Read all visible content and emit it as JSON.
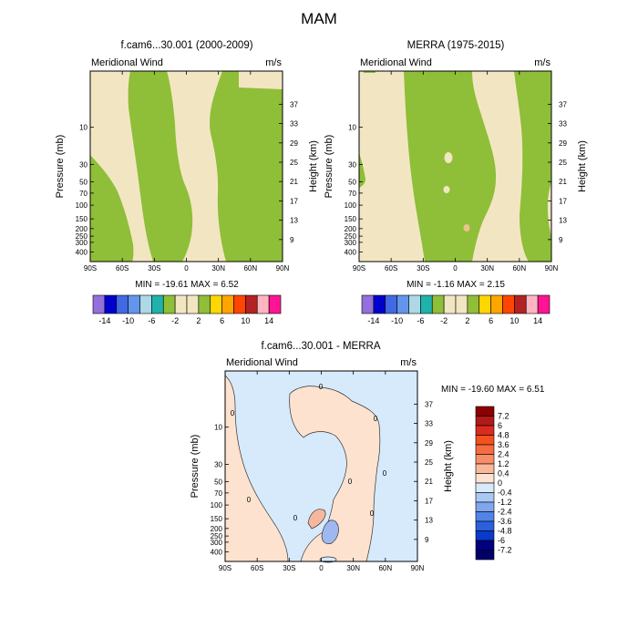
{
  "figure_title": "MAM",
  "chart_data": [
    {
      "type": "heatmap",
      "id": "cam",
      "title": "f.cam6...30.001 (2000-2009)",
      "left_label": "Meridional Wind",
      "right_label": "m/s",
      "xlabel": "",
      "ylabel": "Pressure (mb)",
      "ylabel_right": "Height (km)",
      "x_ticks": [
        "90S",
        "60S",
        "30S",
        "0",
        "30N",
        "60N",
        "90N"
      ],
      "y_ticks": [
        "10",
        "30",
        "50",
        "70",
        "100",
        "150",
        "200",
        "250",
        "300",
        "400"
      ],
      "y2_ticks": [
        "37",
        "33",
        "29",
        "25",
        "21",
        "17",
        "13",
        "9"
      ],
      "stats": "MIN = -19.61   MAX =   6.52",
      "fill_colors": [
        "#f2e6c2",
        "#8fbe38"
      ],
      "regions": [
        "positive (0 to 2) m/s",
        "negative (-2 to 0) m/s"
      ]
    },
    {
      "type": "heatmap",
      "id": "merra",
      "title": "MERRA (1975-2015)",
      "left_label": "Meridional Wind",
      "right_label": "m/s",
      "xlabel": "",
      "ylabel": "Pressure (mb)",
      "ylabel_right": "Height (km)",
      "x_ticks": [
        "90S",
        "60S",
        "30S",
        "0",
        "30N",
        "60N",
        "90N"
      ],
      "y_ticks": [
        "10",
        "30",
        "50",
        "70",
        "100",
        "150",
        "200",
        "250",
        "300",
        "400"
      ],
      "y2_ticks": [
        "37",
        "33",
        "29",
        "25",
        "21",
        "17",
        "13",
        "9"
      ],
      "stats": "MIN =  -1.16   MAX =   2.15",
      "fill_colors": [
        "#f2e6c2",
        "#8fbe38",
        "#e9c48e"
      ],
      "regions": [
        "positive (0 to 2) m/s",
        "negative (-2 to 0) m/s",
        "small positive patch (2 to 4) m/s"
      ]
    },
    {
      "type": "heatmap",
      "id": "diff",
      "title": "f.cam6...30.001 - MERRA",
      "left_label": "Meridional Wind",
      "right_label": "m/s",
      "xlabel": "",
      "ylabel": "Pressure (mb)",
      "ylabel_right": "Height (km)",
      "x_ticks": [
        "90S",
        "60S",
        "30S",
        "0",
        "30N",
        "60N",
        "90N"
      ],
      "y_ticks": [
        "10",
        "30",
        "50",
        "70",
        "100",
        "150",
        "200",
        "250",
        "300",
        "400"
      ],
      "y2_ticks": [
        "37",
        "33",
        "29",
        "25",
        "21",
        "17",
        "13",
        "9"
      ],
      "stats": "MIN = -19.60   MAX =   6.51",
      "fill_colors": [
        "#fde3cf",
        "#d6eafb",
        "#9fb8f0",
        "#f6b89c"
      ],
      "contour_label": "0"
    }
  ],
  "colorbar_top": {
    "labels": [
      "-14",
      "-10",
      "-6",
      "-2",
      "2",
      "6",
      "10",
      "14"
    ],
    "colors": [
      "#9370db",
      "#0000cd",
      "#4169e1",
      "#6495ed",
      "#add8e6",
      "#20b2aa",
      "#8fbe38",
      "#f2e6c2",
      "#f2e6c2",
      "#8fbe38",
      "#ffd700",
      "#ffa500",
      "#ff4500",
      "#b22222",
      "#ffb6c1",
      "#ff1493"
    ]
  },
  "colorbar_bottom": {
    "labels": [
      "7.2",
      "6",
      "4.8",
      "3.6",
      "2.4",
      "1.2",
      "0.4",
      "0",
      "-0.4",
      "-1.2",
      "-2.4",
      "-3.6",
      "-4.8",
      "-6",
      "-7.2"
    ],
    "colors": [
      "#8b0000",
      "#b21a1a",
      "#d92c20",
      "#f4511e",
      "#f66b42",
      "#f88e66",
      "#fbb79a",
      "#fde3cf",
      "#d6eafb",
      "#a9c8f4",
      "#7fa6ee",
      "#5283e6",
      "#2b5fdc",
      "#0a3acc",
      "#000080",
      "#00006b"
    ]
  }
}
